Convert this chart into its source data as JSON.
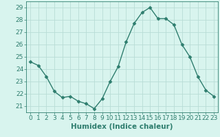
{
  "x": [
    0,
    1,
    2,
    3,
    4,
    5,
    6,
    7,
    8,
    9,
    10,
    11,
    12,
    13,
    14,
    15,
    16,
    17,
    18,
    19,
    20,
    21,
    22,
    23
  ],
  "y": [
    24.6,
    24.3,
    23.4,
    22.2,
    21.7,
    21.8,
    21.4,
    21.2,
    20.8,
    21.6,
    23.0,
    24.2,
    26.2,
    27.7,
    28.6,
    29.0,
    28.1,
    28.1,
    27.6,
    26.0,
    25.0,
    23.4,
    22.3,
    21.8
  ],
  "line_color": "#2e7d6e",
  "bg_color": "#d8f4ee",
  "grid_color": "#b8ddd6",
  "xlabel": "Humidex (Indice chaleur)",
  "ylim": [
    20.5,
    29.5
  ],
  "xlim": [
    -0.5,
    23.5
  ],
  "yticks": [
    21,
    22,
    23,
    24,
    25,
    26,
    27,
    28,
    29
  ],
  "xticks": [
    0,
    1,
    2,
    3,
    4,
    5,
    6,
    7,
    8,
    9,
    10,
    11,
    12,
    13,
    14,
    15,
    16,
    17,
    18,
    19,
    20,
    21,
    22,
    23
  ],
  "marker": "D",
  "markersize": 2.5,
  "linewidth": 1.0,
  "xlabel_fontsize": 7.5,
  "tick_fontsize": 6.5
}
